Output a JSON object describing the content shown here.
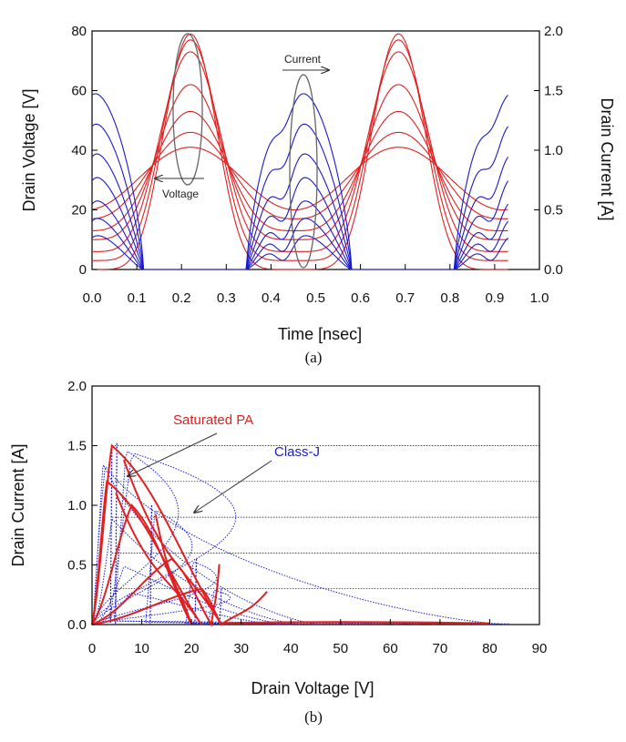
{
  "chart_data": [
    {
      "type": "line",
      "caption": "(a)",
      "xlabel": "Time [nsec]",
      "ylabel": "Drain Voltage [V]",
      "ylabel_right": "Drain Current [A]",
      "xlim": [
        0,
        1.0
      ],
      "ylim": [
        0,
        80
      ],
      "ylim_right": [
        0,
        2.0
      ],
      "xticks": [
        "0.0",
        "0.1",
        "0.2",
        "0.3",
        "0.4",
        "0.5",
        "0.6",
        "0.7",
        "0.8",
        "0.9",
        "1.0"
      ],
      "yticks": [
        "0",
        "20",
        "40",
        "60",
        "80"
      ],
      "yticks_right": [
        "0.0",
        "0.5",
        "1.0",
        "1.5",
        "2.0"
      ],
      "grid": false,
      "annotations": [
        {
          "text": "Current",
          "points_to": "right axis (current traces)"
        },
        {
          "text": "Voltage",
          "points_to": "left axis (voltage traces)"
        }
      ],
      "series": [
        {
          "color": "#e02020",
          "axis": "left",
          "quantity": "drain voltage",
          "peak_V": 79,
          "min_V": 0
        },
        {
          "color": "#e02020",
          "axis": "left",
          "quantity": "drain voltage",
          "peak_V": 77,
          "min_V": 3
        },
        {
          "color": "#e02020",
          "axis": "left",
          "quantity": "drain voltage",
          "peak_V": 73,
          "min_V": 6
        },
        {
          "color": "#e02020",
          "axis": "left",
          "quantity": "drain voltage",
          "peak_V": 62,
          "min_V": 10
        },
        {
          "color": "#e02020",
          "axis": "left",
          "quantity": "drain voltage",
          "peak_V": 53,
          "min_V": 13
        },
        {
          "color": "#e02020",
          "axis": "left",
          "quantity": "drain voltage",
          "peak_V": 46,
          "min_V": 17
        },
        {
          "color": "#e02020",
          "axis": "left",
          "quantity": "drain voltage",
          "peak_V": 41,
          "min_V": 20
        },
        {
          "color": "#1a1acc",
          "axis": "right",
          "quantity": "drain current",
          "peak_A": 1.5
        },
        {
          "color": "#1a1acc",
          "axis": "right",
          "quantity": "drain current",
          "peak_A": 1.25
        },
        {
          "color": "#1a1acc",
          "axis": "right",
          "quantity": "drain current",
          "peak_A": 1.0
        },
        {
          "color": "#1a1acc",
          "axis": "right",
          "quantity": "drain current",
          "peak_A": 0.8
        },
        {
          "color": "#1a1acc",
          "axis": "right",
          "quantity": "drain current",
          "peak_A": 0.6
        },
        {
          "color": "#1a1acc",
          "axis": "right",
          "quantity": "drain current",
          "peak_A": 0.45
        },
        {
          "color": "#1a1acc",
          "axis": "right",
          "quantity": "drain current",
          "peak_A": 0.3
        }
      ]
    },
    {
      "type": "line",
      "caption": "(b)",
      "xlabel": "Drain Voltage [V]",
      "ylabel": "Drain Current [A]",
      "xlim": [
        0,
        90
      ],
      "ylim": [
        0,
        2.0
      ],
      "xticks": [
        "0",
        "10",
        "20",
        "30",
        "40",
        "50",
        "60",
        "70",
        "80",
        "90"
      ],
      "yticks": [
        "0.0",
        "0.5",
        "1.0",
        "1.5",
        "2.0"
      ],
      "hlines": [
        0.3,
        0.6,
        0.9,
        1.2,
        1.5
      ],
      "annotations": [
        {
          "text": "Saturated PA",
          "color": "#e02020"
        },
        {
          "text": "Class-J",
          "color": "#1a1acc"
        }
      ],
      "series": [
        {
          "color": "#e02020",
          "style": "solid",
          "peak_I": 1.5,
          "v_at_peak": 4,
          "v_max": 26
        },
        {
          "color": "#e02020",
          "style": "solid",
          "peak_I": 1.2,
          "v_at_peak": 3,
          "v_max": 22
        },
        {
          "color": "#e02020",
          "style": "solid",
          "peak_I": 1.0,
          "v_at_peak": 8,
          "v_max": 20
        },
        {
          "color": "#e02020",
          "style": "solid",
          "peak_I": 0.55,
          "v_at_peak": 16,
          "v_max": 24
        },
        {
          "color": "#e02020",
          "style": "solid",
          "peak_I": 0.3,
          "v_at_peak": 22,
          "v_max": 26
        },
        {
          "color": "#1a1acc",
          "style": "dotted",
          "peak_I": 1.52,
          "v_at_peak": 5,
          "v_max": 46
        },
        {
          "color": "#1a1acc",
          "style": "dotted",
          "peak_I": 1.5,
          "v_at_peak": 4,
          "v_max": 84
        },
        {
          "color": "#1a1acc",
          "style": "dotted",
          "peak_I": 1.0,
          "v_at_peak": 12,
          "v_max": 42
        },
        {
          "color": "#1a1acc",
          "style": "dotted",
          "peak_I": 0.55,
          "v_at_peak": 21,
          "v_max": 40
        },
        {
          "color": "#1a1acc",
          "style": "dotted",
          "peak_I": 0.3,
          "v_at_peak": 26,
          "v_max": 38
        }
      ]
    }
  ],
  "colors": {
    "voltage": "#e02020",
    "current": "#1a1acc",
    "ellipse": "#666666"
  }
}
